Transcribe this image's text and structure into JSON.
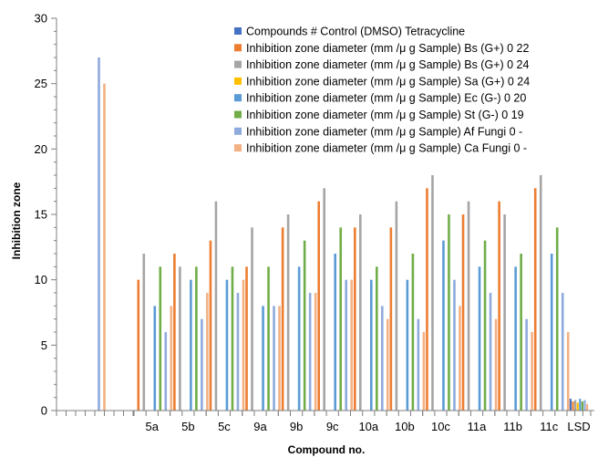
{
  "chart_data": {
    "type": "bar",
    "xlabel": "Compound no.",
    "ylabel": "Inhibition zone",
    "ylim": [
      0,
      30
    ],
    "yticks": [
      0,
      5,
      10,
      15,
      20,
      25,
      30
    ],
    "legend_position": "top-right",
    "grid": false,
    "categories": [
      "",
      "",
      "",
      "",
      "5a",
      "5b",
      "5c",
      "9a",
      "9b",
      "9c",
      "10a",
      "10b",
      "10c",
      "11a",
      "11b",
      "11c",
      "LSD"
    ],
    "series": [
      {
        "name": "Compounds # Control (DMSO) Tetracycline",
        "color": "#4472C4",
        "values": [
          0,
          0,
          0,
          0,
          0,
          0,
          0,
          0,
          0,
          0,
          0,
          0,
          0,
          0,
          0,
          0,
          0.9
        ]
      },
      {
        "name": "Inhibition zone diameter (mm /μ g Sample) Bs (G+) 0 22",
        "color": "#ED7D31",
        "values": [
          0,
          0,
          0,
          0,
          10,
          12,
          13,
          11,
          14,
          16,
          14,
          14,
          17,
          15,
          16,
          17,
          0.7
        ]
      },
      {
        "name": "Inhibition zone diameter (mm /μ g Sample) Bs (G+) 0 24",
        "color": "#A5A5A5",
        "values": [
          0,
          0,
          0,
          0,
          12,
          11,
          16,
          14,
          15,
          17,
          15,
          16,
          18,
          16,
          15,
          18,
          0.8
        ]
      },
      {
        "name": "Inhibition zone diameter (mm /μ g Sample) Sa (G+) 0 24",
        "color": "#FFC000",
        "values": [
          0,
          0,
          0,
          0,
          0,
          0,
          0,
          0,
          0,
          0,
          0,
          0,
          0,
          0,
          0,
          0,
          0.6
        ]
      },
      {
        "name": "Inhibition zone diameter (mm /μ g Sample) Ec (G-) 0 20",
        "color": "#5B9BD5",
        "values": [
          0,
          0,
          0,
          0,
          8,
          10,
          10,
          8,
          11,
          12,
          10,
          10,
          13,
          11,
          11,
          12,
          0.9
        ]
      },
      {
        "name": "Inhibition zone diameter (mm /μ g Sample) St (G-) 0 19",
        "color": "#70AD47",
        "values": [
          0,
          0,
          0,
          0,
          11,
          11,
          11,
          11,
          13,
          14,
          11,
          12,
          15,
          13,
          12,
          14,
          0.7
        ]
      },
      {
        "name": "Inhibition zone diameter (mm /μ g Sample) Af Fungi 0 -",
        "color": "#8FAADC",
        "values": [
          0,
          27,
          0,
          0,
          6,
          7,
          9,
          8,
          9,
          10,
          8,
          7,
          10,
          9,
          7,
          9,
          0.8
        ]
      },
      {
        "name": "Inhibition zone diameter (mm /μ g Sample) Ca Fungi 0 -",
        "color": "#F4B183",
        "values": [
          0,
          25,
          0,
          0,
          8,
          9,
          10,
          8,
          9,
          10,
          7,
          6,
          8,
          7,
          6,
          6,
          0.5
        ]
      }
    ]
  }
}
